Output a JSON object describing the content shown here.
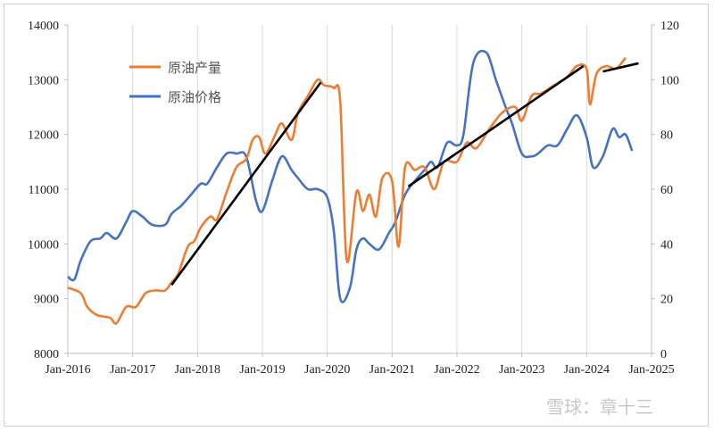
{
  "chart_data": {
    "type": "line",
    "y_left": {
      "ylim": [
        8000,
        14000
      ],
      "ticks": [
        8000,
        9000,
        10000,
        11000,
        12000,
        13000,
        14000
      ]
    },
    "y_right": {
      "ylim": [
        0,
        120
      ],
      "ticks": [
        0,
        20,
        40,
        60,
        80,
        100,
        120
      ]
    },
    "x_ticks": [
      "Jan-2016",
      "Jan-2017",
      "Jan-2018",
      "Jan-2019",
      "Jan-2020",
      "Jan-2021",
      "Jan-2022",
      "Jan-2023",
      "Jan-2024",
      "Jan-2025"
    ],
    "legend": {
      "placement": "top-left"
    },
    "grid": "vertical",
    "series": [
      {
        "name": "原油产量",
        "axis": "left",
        "color": "#ED7D31",
        "points": [
          [
            2016.0,
            9200
          ],
          [
            2016.2,
            9100
          ],
          [
            2016.3,
            8850
          ],
          [
            2016.45,
            8700
          ],
          [
            2016.65,
            8650
          ],
          [
            2016.75,
            8550
          ],
          [
            2016.9,
            8850
          ],
          [
            2017.05,
            8850
          ],
          [
            2017.2,
            9100
          ],
          [
            2017.35,
            9150
          ],
          [
            2017.5,
            9150
          ],
          [
            2017.6,
            9300
          ],
          [
            2017.7,
            9450
          ],
          [
            2017.85,
            9950
          ],
          [
            2017.95,
            10050
          ],
          [
            2018.05,
            10300
          ],
          [
            2018.2,
            10500
          ],
          [
            2018.3,
            10450
          ],
          [
            2018.45,
            10950
          ],
          [
            2018.6,
            11400
          ],
          [
            2018.75,
            11550
          ],
          [
            2018.85,
            11900
          ],
          [
            2018.95,
            11950
          ],
          [
            2019.05,
            11650
          ],
          [
            2019.2,
            12000
          ],
          [
            2019.3,
            12200
          ],
          [
            2019.45,
            11900
          ],
          [
            2019.55,
            12400
          ],
          [
            2019.7,
            12700
          ],
          [
            2019.85,
            13000
          ],
          [
            2019.95,
            12900
          ],
          [
            2020.1,
            12850
          ],
          [
            2020.2,
            12600
          ],
          [
            2020.3,
            9700
          ],
          [
            2020.45,
            10950
          ],
          [
            2020.55,
            10600
          ],
          [
            2020.65,
            10900
          ],
          [
            2020.75,
            10500
          ],
          [
            2020.85,
            11200
          ],
          [
            2021.0,
            11150
          ],
          [
            2021.1,
            9950
          ],
          [
            2021.2,
            11400
          ],
          [
            2021.35,
            11350
          ],
          [
            2021.5,
            11400
          ],
          [
            2021.65,
            11000
          ],
          [
            2021.8,
            11500
          ],
          [
            2022.0,
            11500
          ],
          [
            2022.15,
            11850
          ],
          [
            2022.3,
            11750
          ],
          [
            2022.5,
            12100
          ],
          [
            2022.7,
            12400
          ],
          [
            2022.9,
            12500
          ],
          [
            2023.0,
            12250
          ],
          [
            2023.15,
            12700
          ],
          [
            2023.3,
            12750
          ],
          [
            2023.5,
            12900
          ],
          [
            2023.7,
            13050
          ],
          [
            2023.85,
            13250
          ],
          [
            2024.0,
            13200
          ],
          [
            2024.05,
            12550
          ],
          [
            2024.15,
            13100
          ],
          [
            2024.3,
            13250
          ],
          [
            2024.45,
            13200
          ],
          [
            2024.6,
            13400
          ]
        ]
      },
      {
        "name": "原油价格",
        "axis": "right",
        "color": "#4472C4",
        "points": [
          [
            2016.0,
            28
          ],
          [
            2016.1,
            27
          ],
          [
            2016.2,
            34
          ],
          [
            2016.35,
            41
          ],
          [
            2016.5,
            42
          ],
          [
            2016.6,
            44
          ],
          [
            2016.75,
            42
          ],
          [
            2016.9,
            48
          ],
          [
            2017.0,
            52
          ],
          [
            2017.15,
            50
          ],
          [
            2017.3,
            47
          ],
          [
            2017.5,
            47
          ],
          [
            2017.6,
            51
          ],
          [
            2017.75,
            54
          ],
          [
            2017.9,
            58
          ],
          [
            2018.05,
            62
          ],
          [
            2018.15,
            62
          ],
          [
            2018.3,
            68
          ],
          [
            2018.45,
            73
          ],
          [
            2018.6,
            73
          ],
          [
            2018.75,
            72
          ],
          [
            2018.9,
            56
          ],
          [
            2019.0,
            52
          ],
          [
            2019.15,
            63
          ],
          [
            2019.3,
            72
          ],
          [
            2019.45,
            67
          ],
          [
            2019.55,
            64
          ],
          [
            2019.7,
            60
          ],
          [
            2019.85,
            60
          ],
          [
            2020.0,
            57
          ],
          [
            2020.1,
            45
          ],
          [
            2020.2,
            20
          ],
          [
            2020.35,
            24
          ],
          [
            2020.45,
            38
          ],
          [
            2020.55,
            42
          ],
          [
            2020.65,
            40
          ],
          [
            2020.8,
            38
          ],
          [
            2020.95,
            44
          ],
          [
            2021.05,
            48
          ],
          [
            2021.2,
            58
          ],
          [
            2021.35,
            63
          ],
          [
            2021.5,
            67
          ],
          [
            2021.6,
            70
          ],
          [
            2021.7,
            68
          ],
          [
            2021.85,
            77
          ],
          [
            2022.0,
            76
          ],
          [
            2022.1,
            80
          ],
          [
            2022.25,
            106
          ],
          [
            2022.45,
            110
          ],
          [
            2022.6,
            100
          ],
          [
            2022.75,
            90
          ],
          [
            2022.85,
            84
          ],
          [
            2023.0,
            73
          ],
          [
            2023.15,
            72
          ],
          [
            2023.25,
            73
          ],
          [
            2023.4,
            76
          ],
          [
            2023.55,
            76
          ],
          [
            2023.7,
            82
          ],
          [
            2023.85,
            87
          ],
          [
            2024.0,
            79
          ],
          [
            2024.1,
            68
          ],
          [
            2024.25,
            72
          ],
          [
            2024.4,
            82
          ],
          [
            2024.5,
            79
          ],
          [
            2024.6,
            80
          ],
          [
            2024.7,
            74
          ]
        ]
      }
    ],
    "trend_lines": [
      {
        "axis": "left",
        "color": "#000000",
        "points": [
          [
            2017.6,
            9250
          ],
          [
            2019.9,
            12950
          ]
        ]
      },
      {
        "axis": "left",
        "color": "#000000",
        "points": [
          [
            2021.25,
            11050
          ],
          [
            2023.95,
            13250
          ]
        ]
      },
      {
        "axis": "left",
        "color": "#000000",
        "points": [
          [
            2024.25,
            13150
          ],
          [
            2024.8,
            13300
          ]
        ]
      }
    ]
  },
  "watermark": "雪球：章十三"
}
